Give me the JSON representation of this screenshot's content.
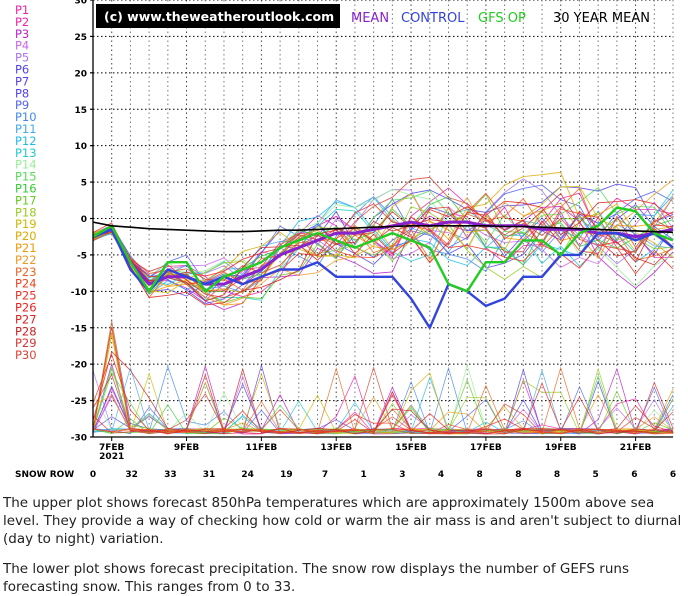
{
  "chart_data": {
    "type": "line",
    "title": "(c) www.theweatheroutlook.com",
    "legend_top": [
      {
        "label": "MEAN",
        "color": "#8822cc"
      },
      {
        "label": "CONTROL",
        "color": "#3344dd"
      },
      {
        "label": "GFS OP",
        "color": "#22cc22"
      },
      {
        "label": "30 YEAR MEAN",
        "color": "#000000"
      }
    ],
    "members": [
      {
        "label": "P1",
        "color": "#ee22aa"
      },
      {
        "label": "P2",
        "color": "#ee22aa"
      },
      {
        "label": "P3",
        "color": "#bb22cc"
      },
      {
        "label": "P4",
        "color": "#cc66ee"
      },
      {
        "label": "P5",
        "color": "#aa77ee"
      },
      {
        "label": "P6",
        "color": "#5544ee"
      },
      {
        "label": "P7",
        "color": "#5544ee"
      },
      {
        "label": "P8",
        "color": "#5544ee"
      },
      {
        "label": "P9",
        "color": "#5566ee"
      },
      {
        "label": "P10",
        "color": "#4488ee"
      },
      {
        "label": "P11",
        "color": "#44aaee"
      },
      {
        "label": "P12",
        "color": "#22bbee"
      },
      {
        "label": "P13",
        "color": "#22cccc"
      },
      {
        "label": "P14",
        "color": "#99ee99"
      },
      {
        "label": "P15",
        "color": "#55dd55"
      },
      {
        "label": "P16",
        "color": "#33cc33"
      },
      {
        "label": "P17",
        "color": "#66cc22"
      },
      {
        "label": "P18",
        "color": "#99cc22"
      },
      {
        "label": "P19",
        "color": "#ccbb00"
      },
      {
        "label": "P20",
        "color": "#ddaa00"
      },
      {
        "label": "P21",
        "color": "#ee9900"
      },
      {
        "label": "P22",
        "color": "#ee9922"
      },
      {
        "label": "P23",
        "color": "#ee6622"
      },
      {
        "label": "P24",
        "color": "#ee4422"
      },
      {
        "label": "P25",
        "color": "#ee3322"
      },
      {
        "label": "P26",
        "color": "#ee2222"
      },
      {
        "label": "P27",
        "color": "#dd2222"
      },
      {
        "label": "P28",
        "color": "#cc2222"
      },
      {
        "label": "P29",
        "color": "#dd3333"
      },
      {
        "label": "P30",
        "color": "#dd4433"
      }
    ],
    "y_ticks": [
      "30",
      "25",
      "20",
      "15",
      "10",
      "5",
      "0",
      "-5",
      "-10",
      "-15",
      "-20",
      "-25",
      "-30"
    ],
    "ylim": [
      -30,
      30
    ],
    "x_ticks": [
      "7FEB",
      "9FEB",
      "11FEB",
      "13FEB",
      "15FEB",
      "17FEB",
      "19FEB",
      "21FEB"
    ],
    "year_label": "2021",
    "snow_row_label": "SNOW ROW",
    "snow_row": [
      "0",
      "32",
      "33",
      "31",
      "24",
      "19",
      "7",
      "1",
      "3",
      "4",
      "8",
      "8",
      "8",
      "5",
      "6",
      "6"
    ],
    "x": [
      "6.5FEB",
      "7FEB",
      "7.5FEB",
      "8FEB",
      "8.5FEB",
      "9FEB",
      "9.5FEB",
      "10FEB",
      "10.5FEB",
      "11FEB",
      "11.5FEB",
      "12FEB",
      "12.5FEB",
      "13FEB",
      "13.5FEB",
      "14FEB",
      "14.5FEB",
      "15FEB",
      "15.5FEB",
      "16FEB",
      "16.5FEB",
      "17FEB",
      "17.5FEB",
      "18FEB",
      "18.5FEB",
      "19FEB",
      "19.5FEB",
      "20FEB",
      "20.5FEB",
      "21FEB",
      "21.5FEB",
      "22FEB"
    ],
    "series": [
      {
        "name": "MEAN",
        "values": [
          -2.5,
          -1.5,
          -6,
          -9,
          -8,
          -8,
          -9,
          -9,
          -8,
          -7,
          -5,
          -4,
          -3,
          -2,
          -2,
          -1.5,
          -1,
          -0.5,
          -1,
          -0.5,
          -0.5,
          -1,
          -1,
          -1,
          -1.5,
          -1.5,
          -1.5,
          -2,
          -2,
          -2.5,
          -2,
          -1.5
        ]
      },
      {
        "name": "CONTROL",
        "values": [
          -2.5,
          -1.5,
          -7,
          -10,
          -7,
          -8,
          -9,
          -8,
          -9,
          -8,
          -7,
          -7,
          -6,
          -8,
          -8,
          -8,
          -8,
          -11,
          -15,
          -9,
          -10,
          -12,
          -11,
          -8,
          -8,
          -5,
          -5,
          -2,
          -2,
          -3,
          -2,
          -4
        ]
      },
      {
        "name": "GFS OP",
        "values": [
          -2.5,
          -1,
          -6,
          -10,
          -6,
          -6,
          -10,
          -8,
          -7,
          -6,
          -4,
          -3,
          -2,
          -3,
          -4,
          -3,
          -2,
          -3,
          -4,
          -9,
          -10,
          -6,
          -6,
          -3,
          -3,
          -5,
          -2,
          -1,
          1.5,
          1,
          -2,
          -3
        ]
      },
      {
        "name": "30 YEAR MEAN",
        "values": [
          -0.5,
          -1,
          -1.2,
          -1.4,
          -1.5,
          -1.6,
          -1.7,
          -1.8,
          -1.8,
          -1.7,
          -1.6,
          -1.6,
          -1.5,
          -1.4,
          -1.3,
          -1.2,
          -1.1,
          -1.0,
          -1.0,
          -1.0,
          -1.0,
          -1.0,
          -1.1,
          -1.1,
          -1.2,
          -1.3,
          -1.4,
          -1.5,
          -1.6,
          -1.7,
          -1.8,
          -1.9
        ]
      }
    ]
  },
  "description": {
    "p1": "The upper plot shows forecast 850hPa temperatures which are approximately 1500m above sea level. They provide a way of checking how cold or warm the air mass is and aren't subject to diurnal (day to night) variation.",
    "p2": "The lower plot shows forecast precipitation. The snow row displays the number of GEFS runs forecasting snow. This ranges from 0 to 33."
  }
}
